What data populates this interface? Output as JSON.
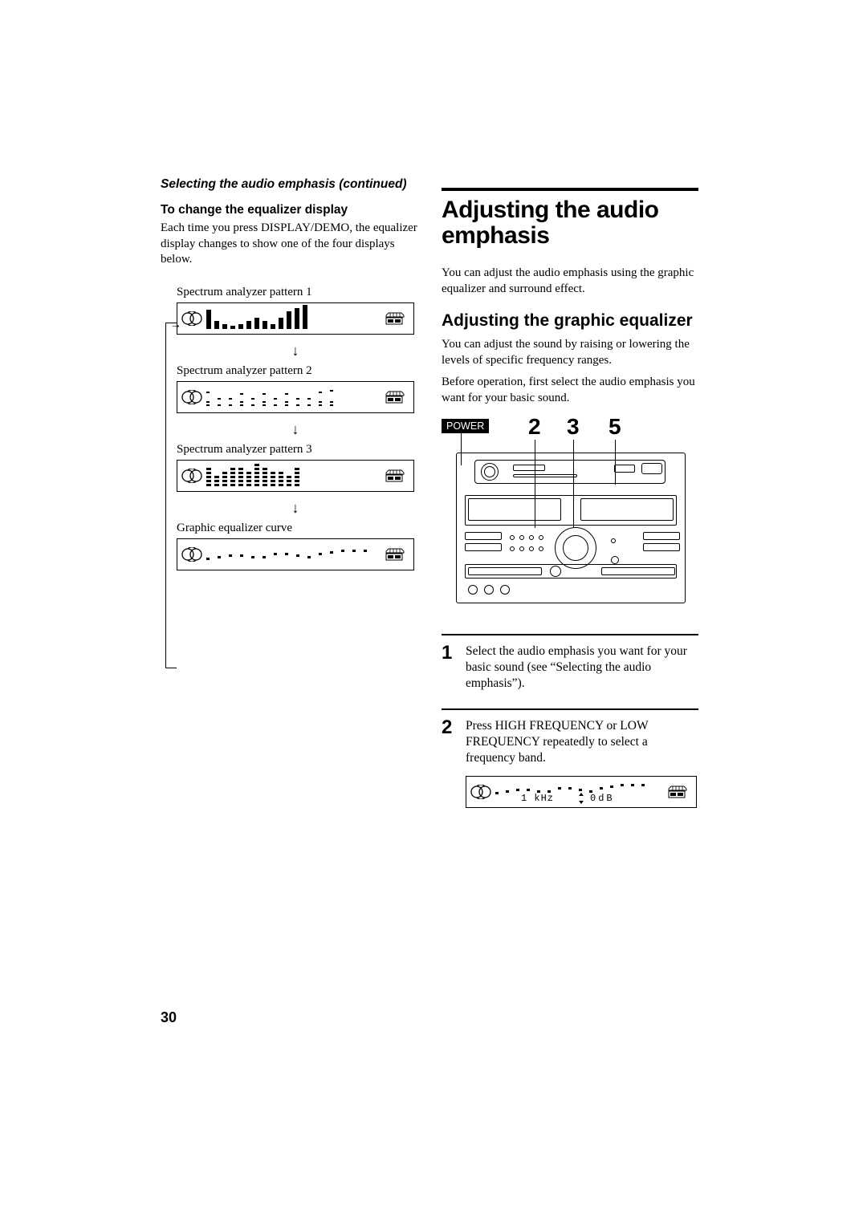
{
  "page_number": "30",
  "left": {
    "continued": "Selecting the audio emphasis (continued)",
    "h3": "To change the equalizer display",
    "body": "Each time you press DISPLAY/DEMO, the equalizer display changes to show one of the four displays below.",
    "patterns": {
      "p1": "Spectrum analyzer pattern 1",
      "p2": "Spectrum analyzer pattern 2",
      "p3": "Spectrum analyzer pattern 3",
      "p4": "Graphic equalizer curve"
    },
    "arrow": "↓",
    "bars_p1": [
      24,
      10,
      6,
      4,
      6,
      10,
      14,
      10,
      6,
      14,
      22,
      26,
      30
    ],
    "bars_p3": [
      5,
      3,
      4,
      5,
      5,
      4,
      6,
      5,
      4,
      4,
      3,
      5
    ],
    "bars_p4_y": [
      4,
      6,
      8,
      8,
      6,
      6,
      10,
      10,
      8,
      6,
      10,
      12,
      14,
      14,
      14
    ],
    "bars_p2_heights": [
      2,
      1,
      1,
      2,
      1,
      2,
      1,
      2,
      1,
      1,
      2,
      2
    ],
    "bars_p2_cap_offset": [
      8,
      4,
      4,
      6,
      4,
      6,
      4,
      6,
      4,
      4,
      8,
      10
    ]
  },
  "right": {
    "h1": "Adjusting the audio emphasis",
    "intro": "You can adjust the audio emphasis using the graphic equalizer and surround effect.",
    "h2": "Adjusting the graphic equalizer",
    "para1": "You can adjust the sound by raising or lowering the levels of specific frequency ranges.",
    "para2": "Before operation, first select the audio emphasis you want for your basic sound.",
    "power_label": "POWER",
    "callouts": {
      "a": "2",
      "b": "3",
      "c": "5"
    },
    "steps": {
      "s1": {
        "num": "1",
        "text": "Select the audio emphasis you want for your basic sound (see “Selecting the audio emphasis”)."
      },
      "s2": {
        "num": "2",
        "text": "Press HIGH FREQUENCY or LOW FREQUENCY repeatedly to select a frequency band."
      }
    },
    "lcd": {
      "freq_label": "1 kHz",
      "db_label": "0dB"
    },
    "lcd_curve_y": [
      4,
      6,
      8,
      8,
      6,
      6,
      10,
      10,
      8,
      6,
      10,
      12,
      14,
      14,
      14
    ]
  },
  "colors": {
    "fg": "#000000",
    "bg": "#ffffff"
  }
}
